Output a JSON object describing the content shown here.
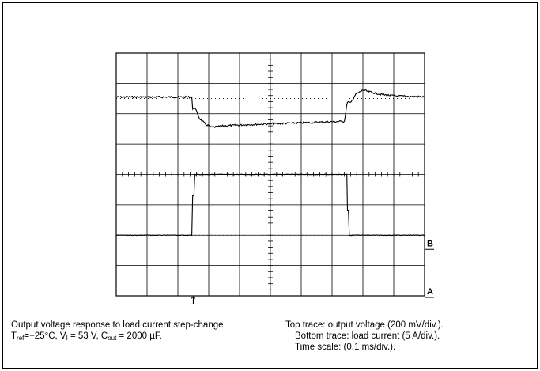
{
  "chart_data": {
    "type": "line",
    "x_divisions": 10,
    "y_divisions": 8,
    "time_scale_ms_per_div": 0.1,
    "grid": true,
    "channel_markers": [
      "B",
      "A"
    ],
    "trigger_marker": "↑",
    "trigger_div": 2.5,
    "series": [
      {
        "id": "top",
        "ref_level_div": 6.5,
        "points": [
          [
            0,
            6.55
          ],
          [
            2.45,
            6.55
          ],
          [
            2.48,
            6.15
          ],
          [
            2.55,
            6.2
          ],
          [
            2.7,
            5.85
          ],
          [
            2.9,
            5.65
          ],
          [
            3.1,
            5.55
          ],
          [
            3.5,
            5.6
          ],
          [
            4.5,
            5.65
          ],
          [
            6.0,
            5.7
          ],
          [
            7.4,
            5.75
          ],
          [
            7.45,
            6.1
          ],
          [
            7.5,
            6.4
          ],
          [
            7.6,
            6.35
          ],
          [
            7.75,
            6.62
          ],
          [
            8.0,
            6.78
          ],
          [
            8.3,
            6.7
          ],
          [
            8.7,
            6.62
          ],
          [
            9.2,
            6.58
          ],
          [
            10,
            6.56
          ]
        ]
      },
      {
        "id": "bottom",
        "ref_level_div": 2.0,
        "points": [
          [
            0,
            2.0
          ],
          [
            2.45,
            2.0
          ],
          [
            2.48,
            3.3
          ],
          [
            2.52,
            3.3
          ],
          [
            2.55,
            4.0
          ],
          [
            7.48,
            4.0
          ],
          [
            7.5,
            2.8
          ],
          [
            7.53,
            2.8
          ],
          [
            7.56,
            2.0
          ],
          [
            10,
            2.0
          ]
        ]
      }
    ]
  },
  "caption": {
    "left_line1": "Output voltage response to load current step-change",
    "left_line2": {
      "t_symbol": "T",
      "t_sub": "ref",
      "t_value": "=+25°C, V",
      "v_sub": "I",
      "v_value": " = 53 V, C",
      "c_sub": "out",
      "c_value": " = 2000 µF."
    },
    "right_line1": "Top trace: output voltage (200 mV/div.).",
    "right_line2": "Bottom trace: load current (5 A/div.).",
    "right_line3": "Time scale: (0.1 ms/div.)."
  }
}
